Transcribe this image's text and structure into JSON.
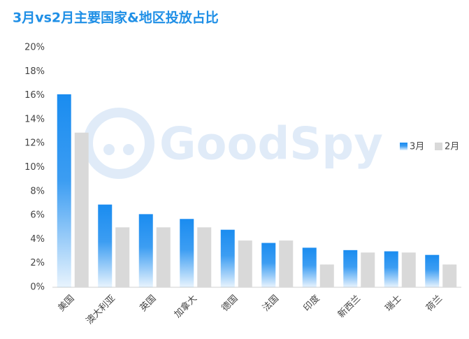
{
  "chart_data": {
    "type": "bar",
    "title": "3月vs2月主要国家&地区投放占比",
    "watermark": "GoodSpy",
    "categories": [
      "美国",
      "澳大利亚",
      "英国",
      "加拿大",
      "德国",
      "法国",
      "印度",
      "新西兰",
      "瑞士",
      "荷兰"
    ],
    "series": [
      {
        "name": "3月",
        "color": "#1a8cf0",
        "values": [
          16.1,
          6.9,
          6.1,
          5.7,
          4.8,
          3.7,
          3.3,
          3.1,
          3.0,
          2.7
        ]
      },
      {
        "name": "2月",
        "color": "#d9d9d9",
        "values": [
          12.9,
          5.0,
          5.0,
          5.0,
          3.9,
          3.9,
          1.9,
          2.9,
          2.9,
          1.9
        ]
      }
    ],
    "ylim": [
      0,
      20
    ],
    "yticks": [
      {
        "value": 0,
        "label": "0%"
      },
      {
        "value": 2,
        "label": "2%"
      },
      {
        "value": 4,
        "label": "4%"
      },
      {
        "value": 6,
        "label": "6%"
      },
      {
        "value": 8,
        "label": "8%"
      },
      {
        "value": 10,
        "label": "10%"
      },
      {
        "value": 12,
        "label": "12%"
      },
      {
        "value": 14,
        "label": "14%"
      },
      {
        "value": 16,
        "label": "16%"
      },
      {
        "value": 18,
        "label": "18%"
      },
      {
        "value": 20,
        "label": "20%"
      }
    ],
    "grid": false,
    "legend": "right"
  }
}
